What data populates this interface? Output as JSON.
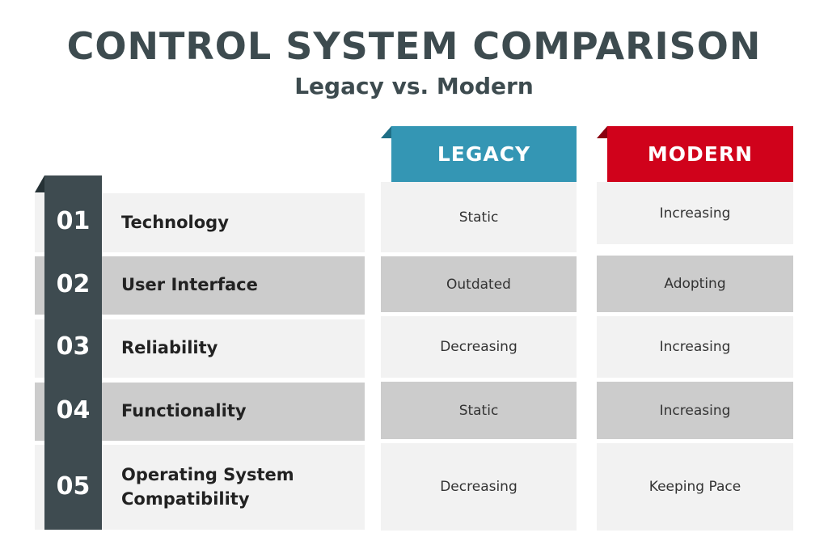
{
  "title": "CONTROL SYSTEM COMPARISON",
  "subtitle": "Legacy vs. Modern",
  "colors": {
    "legacy": "#3496b4",
    "legacy_fold": "#1f6f86",
    "modern": "#d0021b",
    "modern_fold": "#8a0010",
    "strip": "#3e4b50"
  },
  "columns": {
    "legacy": "LEGACY",
    "modern": "MODERN"
  },
  "rows": [
    {
      "number": "01",
      "label": "Technology",
      "legacy": "Static",
      "modern": "Increasing"
    },
    {
      "number": "02",
      "label": "User Interface",
      "legacy": "Outdated",
      "modern": "Adopting"
    },
    {
      "number": "03",
      "label": "Reliability",
      "legacy": "Decreasing",
      "modern": "Increasing"
    },
    {
      "number": "04",
      "label": "Functionality",
      "legacy": "Static",
      "modern": "Increasing"
    },
    {
      "number": "05",
      "label": "Operating System Compatibility",
      "legacy": "Decreasing",
      "modern": "Keeping Pace"
    }
  ]
}
